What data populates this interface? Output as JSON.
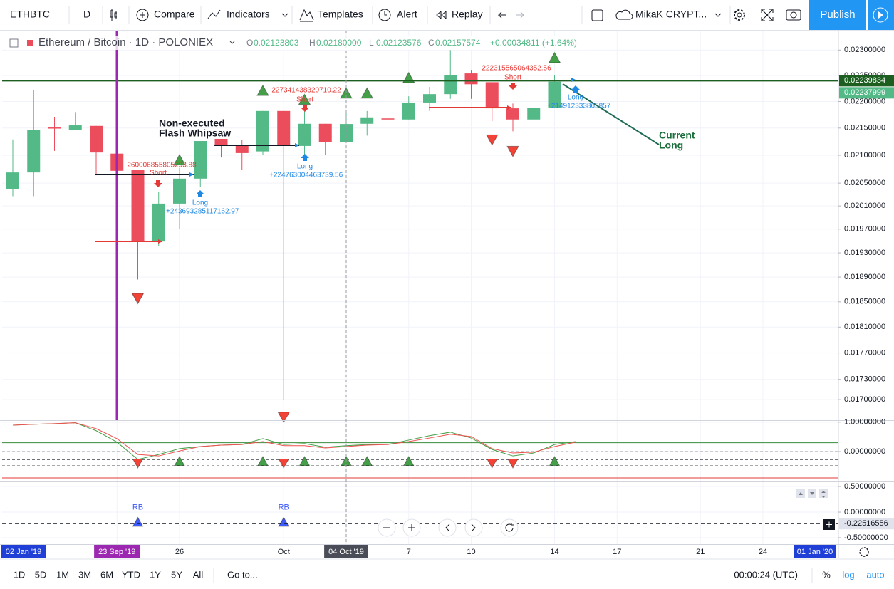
{
  "toolbar": {
    "symbol": "ETHBTC",
    "interval": "D",
    "compare": "Compare",
    "indicators": "Indicators",
    "templates": "Templates",
    "alert": "Alert",
    "replay": "Replay",
    "layout": "MikaK CRYPT...",
    "publish": "Publish"
  },
  "legend": {
    "title": "Ethereum / Bitcoin · 1D · POLONIEX",
    "open_label": "O",
    "open": "0.02123803",
    "high_label": "H",
    "high": "0.02180000",
    "low_label": "L",
    "low": "0.02123576",
    "close_label": "C",
    "close": "0.02157574",
    "change": "+0.00034811 (+1.64%)"
  },
  "annotations": {
    "note": [
      "Non-executed",
      "Flash Whipsaw"
    ],
    "current": [
      "Current",
      "Long"
    ],
    "trades": [
      {
        "short_pnl": "-260006855805293.88",
        "short": "Short",
        "long": "Long",
        "long_pnl": "+243693285117162.97"
      },
      {
        "short_pnl": "-227341438320710.22",
        "short": "Short",
        "long": "Long",
        "long_pnl": "+224763004463739.56"
      },
      {
        "short_pnl": "-222315565064352.56",
        "short": "Short",
        "long": "Long",
        "long_pnl": "+214912333865857"
      }
    ]
  },
  "x_axis": {
    "start": "02 Jan '19",
    "end": "01 Jan '20",
    "highlight_color": "#1f3fd6"
  },
  "bottom_bar": {
    "ranges": [
      "1D",
      "5D",
      "1M",
      "3M",
      "6M",
      "YTD",
      "1Y",
      "5Y",
      "All"
    ],
    "goto": "Go to...",
    "clock": "00:00:24 (UTC)",
    "percent": "%",
    "log": "log",
    "auto": "auto"
  },
  "chart_data": [
    {
      "type": "candlestick",
      "yscale": "log",
      "grid": true,
      "categories": [
        null,
        null,
        null,
        null,
        null,
        "23 Sep '19",
        null,
        null,
        "26",
        null,
        null,
        null,
        null,
        "Oct",
        null,
        null,
        "04 Oct '19",
        null,
        null,
        "7",
        null,
        null,
        "10",
        null,
        null,
        null,
        "14",
        null,
        null,
        "17",
        null,
        null,
        null,
        "21",
        null,
        null,
        "24"
      ],
      "category_label_colors": [
        null,
        null,
        null,
        null,
        null,
        "#9c27b0",
        null,
        null,
        null,
        null,
        null,
        null,
        null,
        null,
        null,
        null,
        "#4a4d57",
        null,
        null,
        null,
        null,
        null,
        null,
        null,
        null,
        null,
        null,
        null,
        null,
        null,
        null,
        null,
        null,
        null,
        null,
        null,
        null
      ],
      "open": [
        0.02039,
        0.02069,
        0.02151,
        0.02146,
        0.02154,
        0.02103,
        0.02073,
        0.01949,
        0.02014,
        0.02058,
        0.0213,
        0.02117,
        0.02107,
        0.02182,
        0.02117,
        0.02158,
        0.02123803,
        0.02158,
        0.02168,
        0.02166,
        0.02198,
        0.02214,
        0.02254,
        0.02237,
        0.02187,
        0.02166,
        0.02188,
        null,
        null,
        null,
        null,
        null,
        null,
        null,
        null,
        null,
        null
      ],
      "high": [
        0.02129,
        0.02222,
        0.02171,
        0.0218,
        0.02154,
        0.02103,
        0.02073,
        0.02035,
        0.02077,
        0.02126,
        0.0213,
        0.02128,
        0.02182,
        0.02182,
        0.02188,
        0.02158,
        0.0218,
        0.02182,
        0.02201,
        0.0221,
        0.02228,
        0.023,
        0.02261,
        0.02237,
        0.02196,
        0.02188,
        0.02251,
        null,
        null,
        null,
        null,
        null,
        null,
        null,
        null,
        null,
        null
      ],
      "low": [
        0.02027,
        0.02027,
        0.02108,
        0.02146,
        0.02064,
        0.02071,
        0.01886,
        0.01941,
        0.0197,
        0.02043,
        0.02096,
        0.02074,
        0.02101,
        0.017,
        0.02101,
        0.02101,
        0.02123576,
        0.02136,
        0.02146,
        0.02166,
        0.02182,
        0.02205,
        0.02205,
        0.02163,
        0.02144,
        0.02166,
        0.02188,
        null,
        null,
        null,
        null,
        null,
        null,
        null,
        null,
        null,
        null
      ],
      "close": [
        0.02069,
        0.02146,
        0.02149,
        0.02155,
        0.02105,
        0.02072,
        0.01949,
        0.02014,
        0.02058,
        0.02126,
        0.02117,
        0.02104,
        0.02182,
        0.02117,
        0.02158,
        0.02124,
        0.02157574,
        0.0217,
        0.02166,
        0.02198,
        0.02214,
        0.02251,
        0.02233,
        0.02187,
        0.02166,
        0.02188,
        0.02237999,
        null,
        null,
        null,
        null,
        null,
        null,
        null,
        null,
        null,
        null
      ],
      "color_up": "#53b987",
      "color_down": "#eb4d5c",
      "ylim": [
        0.0167,
        0.02339
      ],
      "yticks": [
        {
          "value": 0.023,
          "label": "0.02300000"
        },
        {
          "value": 0.0225,
          "label": "0.02250000"
        },
        {
          "value": 0.022,
          "label": "0.02200000"
        },
        {
          "value": 0.0215,
          "label": "0.02150000"
        },
        {
          "value": 0.021,
          "label": "0.02100000"
        },
        {
          "value": 0.0205,
          "label": "0.02050000"
        },
        {
          "value": 0.0201,
          "label": "0.02010000"
        },
        {
          "value": 0.0197,
          "label": "0.01970000"
        },
        {
          "value": 0.0193,
          "label": "0.01930000"
        },
        {
          "value": 0.0189,
          "label": "0.01890000"
        },
        {
          "value": 0.0185,
          "label": "0.01850000"
        },
        {
          "value": 0.0181,
          "label": "0.01810000"
        },
        {
          "value": 0.0177,
          "label": "0.01770000"
        },
        {
          "value": 0.0173,
          "label": "0.01730000"
        },
        {
          "value": 0.017,
          "label": "0.01700000"
        }
      ],
      "markers": [
        {
          "color": "#43a047",
          "shape": "triangle-up",
          "values": [
            null,
            null,
            null,
            null,
            null,
            null,
            null,
            null,
            0.02091,
            null,
            null,
            null,
            0.0222,
            null,
            0.02203,
            null,
            0.02215,
            0.02215,
            null,
            0.02245,
            null,
            null,
            null,
            null,
            null,
            null,
            0.02284,
            null,
            null,
            null,
            null,
            null,
            null,
            null,
            null,
            null,
            null
          ]
        },
        {
          "color": "#f44336",
          "shape": "triangle-down",
          "values": [
            null,
            null,
            null,
            null,
            null,
            null,
            0.01856,
            null,
            null,
            null,
            null,
            null,
            null,
            0.01675,
            null,
            null,
            null,
            null,
            null,
            null,
            null,
            null,
            null,
            0.02129,
            0.02108,
            null,
            null,
            null,
            null,
            null,
            null,
            null,
            null,
            null,
            null,
            null,
            null
          ]
        }
      ],
      "price_lines": [
        {
          "value": 0.02239834,
          "color": "#1b5e20",
          "dash": false
        },
        {
          "value": 0.02237999,
          "color": "#53b987",
          "label_only": true
        }
      ]
    },
    {
      "type": "line",
      "grid": true,
      "series": [
        {
          "color": "#43a047",
          "values": [
            0.9,
            0.93,
            0.95,
            0.98,
            0.71,
            0.32,
            -0.27,
            -0.1,
            0.1,
            0.17,
            0.22,
            0.24,
            0.44,
            0.24,
            0.27,
            0.15,
            0.2,
            0.24,
            0.24,
            0.39,
            0.54,
            0.66,
            0.46,
            0.07,
            -0.15,
            -0.05,
            0.24,
            0.34,
            null,
            null,
            null,
            null,
            null,
            null,
            null,
            null,
            null
          ]
        },
        {
          "color": "#f0504f",
          "values": [
            0.9,
            0.93,
            0.95,
            0.98,
            0.78,
            0.44,
            -0.1,
            -0.15,
            0.02,
            0.17,
            0.22,
            0.24,
            0.34,
            0.2,
            0.2,
            0.12,
            0.17,
            0.22,
            0.24,
            0.34,
            0.46,
            0.59,
            0.51,
            0.1,
            -0.05,
            -0.02,
            0.17,
            0.32,
            null,
            null,
            null,
            null,
            null,
            null,
            null,
            null,
            null
          ]
        }
      ],
      "levels": [
        {
          "value": 0.3,
          "color": "#388e3c",
          "dash": false
        },
        {
          "value": 0,
          "color": "#9598a1",
          "dash": true
        },
        {
          "value": -0.27,
          "color": "#131722",
          "dash": true
        },
        {
          "value": -0.49,
          "color": "#131722",
          "dash": true
        },
        {
          "value": -0.9,
          "color": "#e53935",
          "dash": false
        }
      ],
      "ylim": [
        -1.02,
        1.02
      ],
      "yticks": [
        {
          "value": 1,
          "label": "1.00000000"
        },
        {
          "value": 0,
          "label": "0.00000000"
        }
      ],
      "markers": [
        {
          "color": "#43a047",
          "shape": "triangle-up",
          "values": [
            null,
            null,
            null,
            null,
            null,
            null,
            null,
            null,
            -0.34,
            null,
            null,
            null,
            -0.34,
            null,
            -0.34,
            null,
            -0.34,
            -0.34,
            null,
            -0.34,
            null,
            null,
            null,
            null,
            null,
            null,
            -0.34,
            null,
            null,
            null,
            null,
            null,
            null,
            null,
            null,
            null,
            null
          ]
        },
        {
          "color": "#f44336",
          "shape": "triangle-down",
          "values": [
            null,
            null,
            null,
            null,
            null,
            null,
            -0.39,
            null,
            null,
            null,
            null,
            null,
            null,
            -0.39,
            null,
            null,
            null,
            null,
            null,
            null,
            null,
            null,
            null,
            -0.39,
            -0.39,
            null,
            null,
            null,
            null,
            null,
            null,
            null,
            null,
            null,
            null,
            null,
            null
          ]
        }
      ]
    },
    {
      "type": "scatter",
      "grid": true,
      "ylim": [
        -0.625,
        0.57
      ],
      "yticks": [
        {
          "value": 0.5,
          "label": "0.50000000"
        },
        {
          "value": 0,
          "label": "0.00000000"
        },
        {
          "value": -0.5,
          "label": "-0.50000000"
        }
      ],
      "markers": [
        {
          "color": "#3d5afe",
          "shape": "triangle-up",
          "values": [
            null,
            null,
            null,
            null,
            null,
            null,
            -0.2,
            null,
            null,
            null,
            null,
            null,
            null,
            -0.2,
            null,
            null,
            null,
            null,
            null,
            null,
            null,
            null,
            null,
            null,
            null,
            null,
            null,
            null,
            null,
            null,
            null,
            null,
            null,
            null,
            null,
            null,
            null
          ],
          "value_labels": [
            null,
            null,
            null,
            null,
            null,
            null,
            "RB",
            null,
            null,
            null,
            null,
            null,
            null,
            "RB",
            null,
            null,
            null,
            null,
            null,
            null,
            null,
            null,
            null,
            null,
            null,
            null,
            null,
            null,
            null,
            null,
            null,
            null,
            null,
            null,
            null,
            null,
            null
          ]
        }
      ],
      "price_lines": [
        {
          "value": -0.22516556,
          "color": "#131722",
          "dash": true
        }
      ]
    }
  ]
}
